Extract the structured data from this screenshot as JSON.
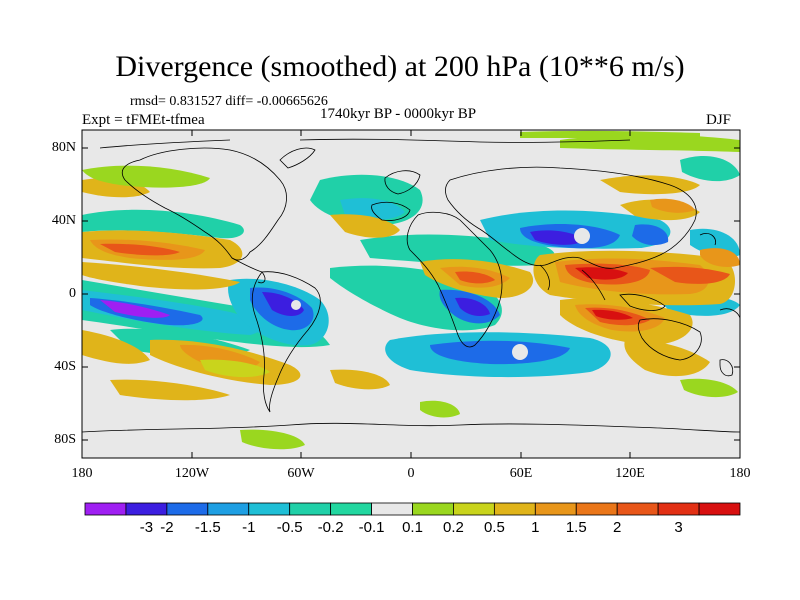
{
  "title": "Divergence (smoothed) at 200 hPa (10**6 m/s)",
  "stats": "rmsd= 0.831527 diff= -0.00665626",
  "experiment": "Expt = tFMEt-tfmea",
  "period": "1740kyr BP - 0000kyr BP",
  "season": "DJF",
  "lat_ticks": [
    "80N",
    "40N",
    "0",
    "40S",
    "80S"
  ],
  "lon_ticks": [
    "180",
    "120W",
    "60W",
    "0",
    "60E",
    "120E",
    "180"
  ],
  "colorbar": {
    "colors": [
      "#9f1ff2",
      "#3c1ee0",
      "#1d6be8",
      "#1e9fe3",
      "#1fbfd6",
      "#20d0a8",
      "#22d7a0",
      "#e8e8e8",
      "#9ad71f",
      "#c9d41c",
      "#e0b41a",
      "#e8961a",
      "#ea7619",
      "#e85619",
      "#e23014",
      "#d81010"
    ],
    "labels": [
      "-3",
      "-2",
      "-1.5",
      "-1",
      "-0.5",
      "-0.2",
      "-0.1",
      "0.1",
      "0.2",
      "0.5",
      "1",
      "1.5",
      "2",
      "3"
    ]
  }
}
